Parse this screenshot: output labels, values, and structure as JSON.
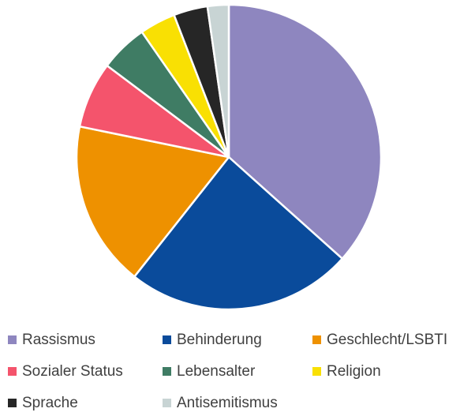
{
  "chart_data": {
    "type": "pie",
    "title": "",
    "start_angle_deg": 0,
    "direction": "clockwise",
    "slices": [
      {
        "label": "Rassismus",
        "value": 37.5,
        "color": "#8e86bf"
      },
      {
        "label": "Behinderung",
        "value": 24.6,
        "color": "#0a4b9b"
      },
      {
        "label": "Geschlecht/LSBTI",
        "value": 18.0,
        "color": "#ee9100"
      },
      {
        "label": "Sozialer Status",
        "value": 7.2,
        "color": "#f4546c"
      },
      {
        "label": "Lebensalter",
        "value": 5.2,
        "color": "#3f7c64"
      },
      {
        "label": "Religion",
        "value": 3.9,
        "color": "#f9e003"
      },
      {
        "label": "Sprache",
        "value": 3.7,
        "color": "#262626"
      },
      {
        "label": "Antisemitismus",
        "value": 2.3,
        "color": "#c8d4d4"
      }
    ],
    "legend_position": "bottom"
  }
}
